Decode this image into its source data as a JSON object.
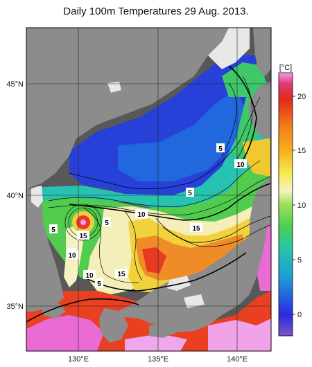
{
  "title": "Daily 100m Temperatures 29 Aug. 2013.",
  "map": {
    "lat_labels": [
      "45°N",
      "40°N",
      "35°N"
    ],
    "lon_labels": [
      "130°E",
      "135°E",
      "140°E"
    ],
    "colors": {
      "land": "#8c8c8c",
      "shelf": "#e8e8e8",
      "background": "#585858"
    }
  },
  "contour_labels": [
    {
      "text": "5"
    },
    {
      "text": "10"
    },
    {
      "text": "5"
    },
    {
      "text": "10"
    },
    {
      "text": "5"
    },
    {
      "text": "5"
    },
    {
      "text": "15"
    },
    {
      "text": "5"
    },
    {
      "text": "15"
    },
    {
      "text": "10"
    },
    {
      "text": "10"
    },
    {
      "text": "5"
    },
    {
      "text": "15"
    }
  ],
  "colorbar": {
    "unit": "[°C]",
    "ticks": [
      "20",
      "15",
      "10",
      "5",
      "0"
    ]
  }
}
